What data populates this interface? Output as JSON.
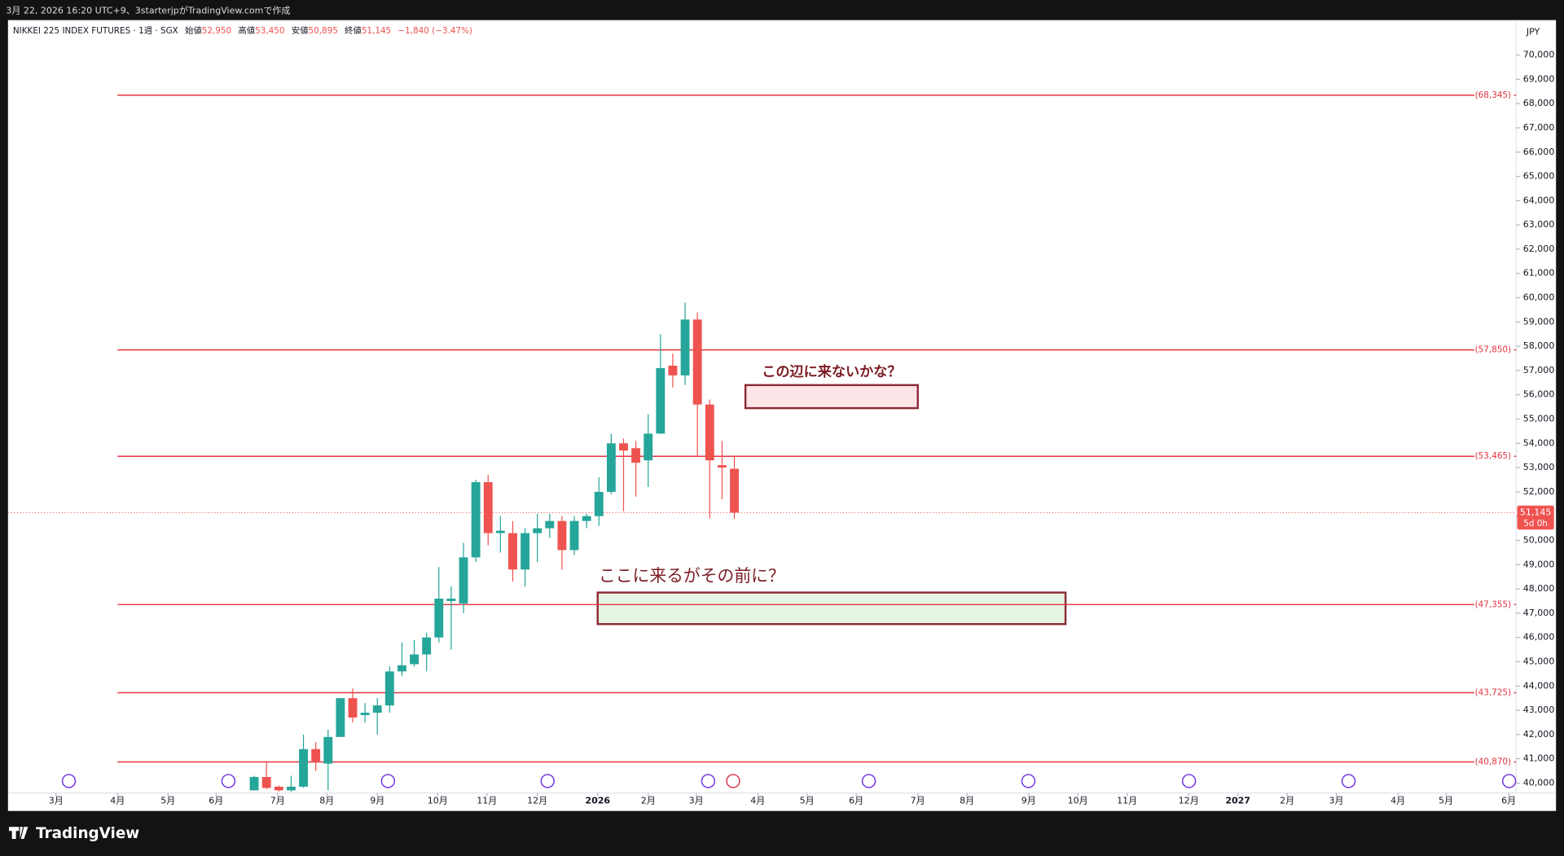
{
  "page": {
    "top_caption": "3月 22, 2026 16:20 UTC+9、3starterjpがTradingView.comで作成",
    "brand": "TradingView"
  },
  "header": {
    "symbol": "NIKKEI 225 INDEX FUTURES · 1週 · SGX",
    "open_label": "始値",
    "open": "52,950",
    "high_label": "高値",
    "high": "53,450",
    "low_label": "安値",
    "low": "50,895",
    "close_label": "終値",
    "close": "51,145",
    "change": "−1,840 (−3.47%)"
  },
  "chart_data": {
    "type": "candlestick",
    "currency": "JPY",
    "up_color": "#26a69a",
    "down_color": "#ef5350",
    "line_color": "#e5333f",
    "ylim": [
      39590,
      71440
    ],
    "xlim": [
      -20,
      102.5
    ],
    "yticks": [
      {
        "value": 40000,
        "label": "40,000"
      },
      {
        "value": 41000,
        "label": "41,000"
      },
      {
        "value": 42000,
        "label": "42,000"
      },
      {
        "value": 43000,
        "label": "43,000"
      },
      {
        "value": 44000,
        "label": "44,000"
      },
      {
        "value": 45000,
        "label": "45,000"
      },
      {
        "value": 46000,
        "label": "46,000"
      },
      {
        "value": 47000,
        "label": "47,000"
      },
      {
        "value": 48000,
        "label": "48,000"
      },
      {
        "value": 49000,
        "label": "49,000"
      },
      {
        "value": 50000,
        "label": "50,000"
      },
      {
        "value": 51000,
        "label": "51,000"
      },
      {
        "value": 52000,
        "label": "52,000"
      },
      {
        "value": 53000,
        "label": "53,000"
      },
      {
        "value": 54000,
        "label": "54,000"
      },
      {
        "value": 55000,
        "label": "55,000"
      },
      {
        "value": 56000,
        "label": "56,000"
      },
      {
        "value": 57000,
        "label": "57,000"
      },
      {
        "value": 58000,
        "label": "58,000"
      },
      {
        "value": 59000,
        "label": "59,000"
      },
      {
        "value": 60000,
        "label": "60,000"
      },
      {
        "value": 61000,
        "label": "61,000"
      },
      {
        "value": 62000,
        "label": "62,000"
      },
      {
        "value": 63000,
        "label": "63,000"
      },
      {
        "value": 64000,
        "label": "64,000"
      },
      {
        "value": 65000,
        "label": "65,000"
      },
      {
        "value": 66000,
        "label": "66,000"
      },
      {
        "value": 67000,
        "label": "67,000"
      },
      {
        "value": 68000,
        "label": "68,000"
      },
      {
        "value": 69000,
        "label": "69,000"
      },
      {
        "value": 70000,
        "label": "70,000"
      }
    ],
    "xticks": [
      {
        "value": -16.1,
        "label": "3月"
      },
      {
        "value": -11.1,
        "label": "4月"
      },
      {
        "value": -7.0,
        "label": "5月"
      },
      {
        "value": -3.1,
        "label": "6月"
      },
      {
        "value": 1.9,
        "label": "7月"
      },
      {
        "value": 5.9,
        "label": "8月"
      },
      {
        "value": 10.0,
        "label": "9月"
      },
      {
        "value": 14.9,
        "label": "10月"
      },
      {
        "value": 18.9,
        "label": "11月"
      },
      {
        "value": 23.0,
        "label": "12月"
      },
      {
        "value": 27.9,
        "label": "2026"
      },
      {
        "value": 32.0,
        "label": "2月"
      },
      {
        "value": 35.9,
        "label": "3月"
      },
      {
        "value": 40.9,
        "label": "4月"
      },
      {
        "value": 44.9,
        "label": "5月"
      },
      {
        "value": 48.9,
        "label": "6月"
      },
      {
        "value": 53.9,
        "label": "7月"
      },
      {
        "value": 57.9,
        "label": "8月"
      },
      {
        "value": 62.9,
        "label": "9月"
      },
      {
        "value": 66.9,
        "label": "10月"
      },
      {
        "value": 70.9,
        "label": "11月"
      },
      {
        "value": 75.9,
        "label": "12月"
      },
      {
        "value": 79.9,
        "label": "2027"
      },
      {
        "value": 83.9,
        "label": "2月"
      },
      {
        "value": 87.9,
        "label": "3月"
      },
      {
        "value": 92.9,
        "label": "4月"
      },
      {
        "value": 96.8,
        "label": "5月"
      },
      {
        "value": 101.9,
        "label": "6月"
      }
    ],
    "candles": [
      {
        "o": 39700,
        "h": 40300,
        "l": 39700,
        "c": 40250
      },
      {
        "o": 40250,
        "h": 40900,
        "l": 39750,
        "c": 39800
      },
      {
        "o": 39850,
        "h": 39900,
        "l": 39650,
        "c": 39700
      },
      {
        "o": 39700,
        "h": 40300,
        "l": 39650,
        "c": 39850
      },
      {
        "o": 39850,
        "h": 42000,
        "l": 39800,
        "c": 41400
      },
      {
        "o": 41400,
        "h": 41700,
        "l": 40500,
        "c": 40900
      },
      {
        "o": 40800,
        "h": 42200,
        "l": 39700,
        "c": 41900
      },
      {
        "o": 41900,
        "h": 43500,
        "l": 41900,
        "c": 43500
      },
      {
        "o": 43500,
        "h": 43900,
        "l": 42500,
        "c": 42700
      },
      {
        "o": 42800,
        "h": 43300,
        "l": 42500,
        "c": 42900
      },
      {
        "o": 42900,
        "h": 43500,
        "l": 42000,
        "c": 43200
      },
      {
        "o": 43200,
        "h": 44800,
        "l": 42900,
        "c": 44600
      },
      {
        "o": 44600,
        "h": 45800,
        "l": 44400,
        "c": 44850
      },
      {
        "o": 44900,
        "h": 45900,
        "l": 44800,
        "c": 45300
      },
      {
        "o": 45300,
        "h": 46200,
        "l": 44600,
        "c": 46000
      },
      {
        "o": 46000,
        "h": 48900,
        "l": 45800,
        "c": 47600
      },
      {
        "o": 47500,
        "h": 48100,
        "l": 45500,
        "c": 47600
      },
      {
        "o": 47400,
        "h": 49900,
        "l": 47000,
        "c": 49300
      },
      {
        "o": 49300,
        "h": 52500,
        "l": 49100,
        "c": 52400
      },
      {
        "o": 52400,
        "h": 52700,
        "l": 49800,
        "c": 50300
      },
      {
        "o": 50300,
        "h": 51000,
        "l": 49500,
        "c": 50400
      },
      {
        "o": 50300,
        "h": 50800,
        "l": 48300,
        "c": 48800
      },
      {
        "o": 48800,
        "h": 50500,
        "l": 48100,
        "c": 50300
      },
      {
        "o": 50300,
        "h": 51100,
        "l": 49100,
        "c": 50500
      },
      {
        "o": 50500,
        "h": 51100,
        "l": 50100,
        "c": 50800
      },
      {
        "o": 50800,
        "h": 51000,
        "l": 48800,
        "c": 49600
      },
      {
        "o": 49600,
        "h": 51000,
        "l": 49400,
        "c": 50800
      },
      {
        "o": 50800,
        "h": 51100,
        "l": 50500,
        "c": 51000
      },
      {
        "o": 51000,
        "h": 52600,
        "l": 50600,
        "c": 52000
      },
      {
        "o": 52000,
        "h": 54400,
        "l": 51900,
        "c": 54000
      },
      {
        "o": 54000,
        "h": 54200,
        "l": 51200,
        "c": 53700
      },
      {
        "o": 53800,
        "h": 54100,
        "l": 51800,
        "c": 53200
      },
      {
        "o": 53300,
        "h": 55200,
        "l": 52200,
        "c": 54400
      },
      {
        "o": 54400,
        "h": 58500,
        "l": 54400,
        "c": 57100
      },
      {
        "o": 57200,
        "h": 57700,
        "l": 56300,
        "c": 56800
      },
      {
        "o": 56800,
        "h": 59800,
        "l": 56400,
        "c": 59100
      },
      {
        "o": 59100,
        "h": 59400,
        "l": 53500,
        "c": 55600
      },
      {
        "o": 55600,
        "h": 55800,
        "l": 50900,
        "c": 53300
      },
      {
        "o": 53100,
        "h": 54100,
        "l": 51700,
        "c": 53000
      },
      {
        "o": 52950,
        "h": 53450,
        "l": 50895,
        "c": 51145
      }
    ],
    "hlines": [
      {
        "value": 68345,
        "label": "(68,345)"
      },
      {
        "value": 57850,
        "label": "(57,850)"
      },
      {
        "value": 53465,
        "label": "(53,465)"
      },
      {
        "value": 47355,
        "label": "(47,355)"
      },
      {
        "value": 43725,
        "label": "(43,725)"
      },
      {
        "value": 40870,
        "label": "(40,870)"
      }
    ],
    "last_price": {
      "value": 51145,
      "label": "51,145"
    },
    "countdown": "5d 0h",
    "annotations": [
      {
        "text": "この辺に来ないかな？",
        "x0": 39.9,
        "x1": 53.9,
        "y0": 55450,
        "y1": 56400,
        "color": "#8b2a35",
        "fill": "#fde4e7"
      },
      {
        "text": "ここに来るがその前に？",
        "x0": 27.9,
        "x1": 65.9,
        "y0": 46550,
        "y1": 47850,
        "color": "#8b2a35",
        "fill": "#e6f4e4"
      }
    ]
  }
}
